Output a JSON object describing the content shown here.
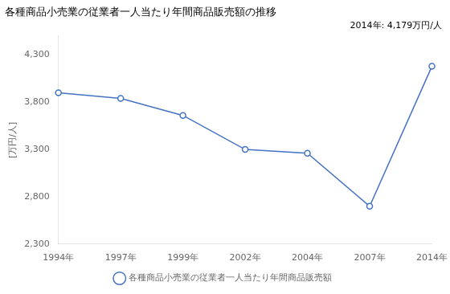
{
  "chart_data": {
    "type": "line",
    "title": "各種商品小売業の従業者一人当たり年間商品販売額の推移",
    "ylabel": "[万円/人]",
    "annotation": "2014年: 4,179万円/人",
    "categories": [
      "1994年",
      "1997年",
      "1999年",
      "2002年",
      "2004年",
      "2007年",
      "2014年"
    ],
    "series": [
      {
        "name": "各種商品小売業の従業者一人当たり年間商品販売額",
        "color": "#4472c4",
        "marker": "o",
        "values": [
          3900,
          3840,
          3660,
          3300,
          3260,
          2700,
          4179
        ]
      }
    ],
    "ylim": [
      2300,
      4500
    ],
    "yticks": [
      {
        "value": 2300,
        "label": "2,300"
      },
      {
        "value": 2800,
        "label": "2,800"
      },
      {
        "value": 3300,
        "label": "3,300"
      },
      {
        "value": 3800,
        "label": "3,800"
      },
      {
        "value": 4300,
        "label": "4,300"
      }
    ],
    "grid": false,
    "legend": "bottom"
  }
}
